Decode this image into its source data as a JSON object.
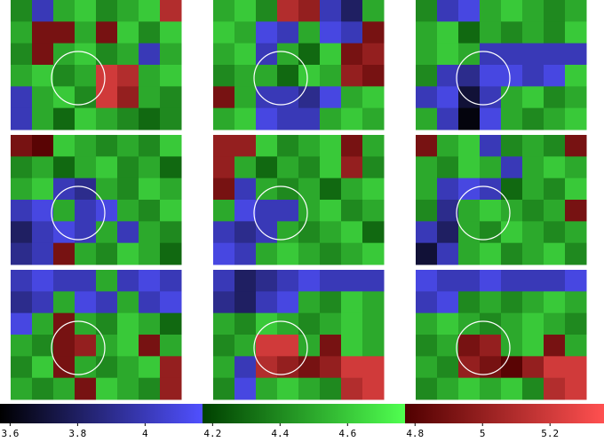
{
  "chart_data": {
    "type": "heatmap",
    "panels": [
      {
        "values": [
          [
            4.4,
            4.0,
            4.5,
            4.6,
            4.4,
            4.5,
            4.6,
            5.1
          ],
          [
            4.5,
            4.9,
            4.9,
            4.5,
            4.9,
            4.6,
            4.4,
            4.6
          ],
          [
            4.4,
            4.9,
            4.5,
            4.6,
            4.4,
            4.5,
            4.0,
            4.5
          ],
          [
            4.5,
            4.6,
            4.4,
            4.5,
            5.2,
            5.1,
            4.5,
            4.6
          ],
          [
            4.0,
            4.5,
            4.6,
            4.4,
            5.2,
            5.0,
            4.5,
            4.4
          ],
          [
            4.0,
            4.5,
            4.3,
            4.6,
            4.5,
            4.4,
            4.3,
            4.4
          ]
        ]
      },
      {
        "values": [
          [
            4.5,
            4.6,
            4.4,
            5.1,
            5.0,
            4.0,
            3.8,
            4.5
          ],
          [
            4.6,
            4.5,
            4.1,
            4.0,
            4.5,
            4.1,
            4.0,
            4.9
          ],
          [
            4.5,
            4.6,
            4.0,
            4.5,
            4.3,
            4.6,
            4.9,
            5.0
          ],
          [
            4.4,
            4.5,
            4.5,
            4.3,
            4.6,
            4.5,
            5.0,
            4.9
          ],
          [
            4.9,
            4.5,
            4.0,
            4.0,
            3.9,
            4.1,
            4.5,
            4.6
          ],
          [
            4.5,
            4.6,
            4.1,
            4.0,
            4.0,
            4.5,
            4.6,
            4.5
          ]
        ]
      },
      {
        "values": [
          [
            4.4,
            4.0,
            4.1,
            4.5,
            4.6,
            4.5,
            4.4,
            4.5
          ],
          [
            4.5,
            4.6,
            4.3,
            4.5,
            4.4,
            4.5,
            4.4,
            4.6
          ],
          [
            4.5,
            4.6,
            4.5,
            4.0,
            4.0,
            4.0,
            4.0,
            4.0
          ],
          [
            4.4,
            4.0,
            3.9,
            4.1,
            4.1,
            4.0,
            4.1,
            4.6
          ],
          [
            4.0,
            4.1,
            3.7,
            4.0,
            4.5,
            4.6,
            4.4,
            4.5
          ],
          [
            4.5,
            4.0,
            3.6,
            4.1,
            4.5,
            4.4,
            4.5,
            4.6
          ]
        ]
      },
      {
        "values": [
          [
            4.9,
            4.8,
            4.6,
            4.5,
            4.4,
            4.5,
            4.4,
            4.6
          ],
          [
            4.4,
            4.5,
            4.3,
            4.5,
            4.6,
            4.4,
            4.5,
            4.3
          ],
          [
            4.5,
            4.6,
            4.0,
            3.9,
            4.5,
            4.4,
            4.6,
            4.5
          ],
          [
            4.0,
            4.1,
            4.5,
            4.0,
            4.1,
            4.5,
            4.4,
            4.6
          ],
          [
            3.8,
            4.0,
            4.1,
            4.0,
            4.5,
            4.0,
            4.5,
            4.4
          ],
          [
            3.9,
            4.0,
            4.9,
            4.5,
            4.4,
            4.6,
            4.5,
            4.3
          ]
        ]
      },
      {
        "values": [
          [
            5.0,
            5.0,
            4.6,
            4.4,
            4.5,
            4.6,
            4.9,
            4.5
          ],
          [
            5.0,
            4.5,
            4.3,
            4.5,
            4.4,
            4.6,
            5.0,
            4.4
          ],
          [
            4.9,
            4.0,
            4.5,
            4.4,
            4.5,
            4.3,
            4.5,
            4.6
          ],
          [
            4.5,
            4.1,
            4.0,
            4.0,
            4.5,
            4.6,
            4.4,
            4.5
          ],
          [
            4.0,
            3.9,
            4.0,
            4.5,
            4.4,
            4.5,
            4.6,
            4.3
          ],
          [
            4.1,
            4.0,
            4.5,
            4.6,
            4.5,
            4.4,
            4.5,
            4.6
          ]
        ]
      },
      {
        "values": [
          [
            4.9,
            4.5,
            4.6,
            4.0,
            4.4,
            4.5,
            4.4,
            4.9
          ],
          [
            4.5,
            4.4,
            4.6,
            4.5,
            4.0,
            4.5,
            4.6,
            4.5
          ],
          [
            4.5,
            4.0,
            4.1,
            4.0,
            4.3,
            4.5,
            4.4,
            4.6
          ],
          [
            4.4,
            3.9,
            4.5,
            4.6,
            4.5,
            4.4,
            4.5,
            4.9
          ],
          [
            4.0,
            3.8,
            4.5,
            4.4,
            4.6,
            4.5,
            4.4,
            4.5
          ],
          [
            3.7,
            4.0,
            4.5,
            4.6,
            4.4,
            4.5,
            4.6,
            4.4
          ]
        ]
      },
      {
        "values": [
          [
            4.0,
            4.1,
            4.0,
            4.0,
            4.5,
            4.0,
            4.1,
            4.0
          ],
          [
            3.9,
            4.0,
            4.5,
            4.1,
            4.0,
            4.5,
            4.0,
            4.1
          ],
          [
            4.1,
            4.5,
            4.9,
            4.5,
            4.4,
            4.6,
            4.5,
            4.3
          ],
          [
            4.5,
            4.4,
            4.9,
            5.0,
            4.5,
            4.6,
            4.9,
            4.5
          ],
          [
            4.4,
            4.6,
            4.9,
            4.5,
            4.4,
            4.5,
            4.6,
            5.0
          ],
          [
            4.5,
            4.4,
            4.5,
            4.9,
            4.6,
            4.5,
            4.4,
            5.0
          ]
        ]
      },
      {
        "values": [
          [
            4.0,
            3.8,
            3.9,
            4.0,
            4.1,
            4.0,
            4.0,
            4.0
          ],
          [
            3.9,
            3.8,
            4.0,
            4.1,
            4.5,
            4.4,
            4.6,
            4.5
          ],
          [
            4.5,
            4.4,
            4.6,
            4.5,
            4.4,
            4.5,
            4.6,
            4.5
          ],
          [
            4.4,
            4.5,
            5.2,
            5.2,
            4.5,
            4.9,
            4.6,
            4.5
          ],
          [
            4.5,
            4.0,
            5.1,
            5.0,
            4.9,
            5.0,
            5.2,
            5.2
          ],
          [
            4.4,
            4.1,
            4.5,
            4.6,
            4.5,
            4.4,
            5.1,
            5.2
          ]
        ]
      },
      {
        "values": [
          [
            4.1,
            4.0,
            4.0,
            4.1,
            4.0,
            4.0,
            4.0,
            4.1
          ],
          [
            4.0,
            4.1,
            4.4,
            4.5,
            4.4,
            4.5,
            4.6,
            4.5
          ],
          [
            4.5,
            4.6,
            4.5,
            4.4,
            4.5,
            4.6,
            4.5,
            4.4
          ],
          [
            4.4,
            4.5,
            4.9,
            5.0,
            4.5,
            4.6,
            4.9,
            4.5
          ],
          [
            4.5,
            4.4,
            5.0,
            4.9,
            4.8,
            5.0,
            5.2,
            5.2
          ],
          [
            4.4,
            4.5,
            4.6,
            4.5,
            4.6,
            4.4,
            5.1,
            5.2
          ]
        ]
      }
    ],
    "colorbar": {
      "lim": [
        3.57,
        5.36
      ],
      "ticks": [
        3.6,
        3.8,
        4,
        4.2,
        4.4,
        4.6,
        4.8,
        5,
        5.2
      ],
      "colorscale": [
        {
          "value": 3.57,
          "color": "#000000"
        },
        {
          "value": 4.17,
          "color": "#5050ff"
        },
        {
          "value": 4.17,
          "color": "#004000"
        },
        {
          "value": 4.77,
          "color": "#50ff50"
        },
        {
          "value": 4.77,
          "color": "#500000"
        },
        {
          "value": 5.36,
          "color": "#ff5050"
        }
      ]
    }
  }
}
